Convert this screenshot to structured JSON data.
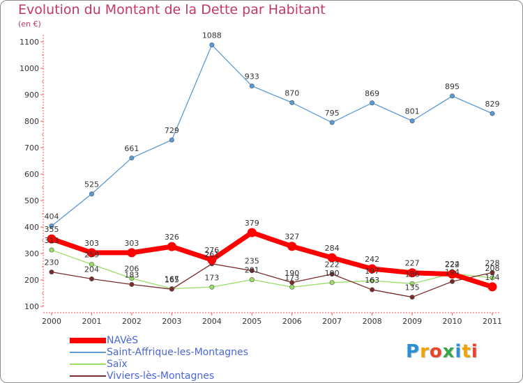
{
  "header": {
    "title": "Evolution du Montant de la Dette par Habitant",
    "subtitle": "(en €)"
  },
  "logo": {
    "text": "Proxiti",
    "colors": [
      "#2a8fd6",
      "#f2a400",
      "#e8442a",
      "#3aa64a",
      "#2a8fd6",
      "#f2a400",
      "#e8442a"
    ]
  },
  "chart_data": {
    "type": "line",
    "x": [
      "2000",
      "2001",
      "2002",
      "2003",
      "2004",
      "2005",
      "2006",
      "2007",
      "2008",
      "2009",
      "2010",
      "2011"
    ],
    "yticks": [
      "100",
      "200",
      "300",
      "400",
      "500",
      "600",
      "700",
      "800",
      "900",
      "1000",
      "1100"
    ],
    "ylim": [
      100,
      1100
    ],
    "grid": false,
    "legend_position": "bottom-left",
    "series": [
      {
        "name": "NAVèS",
        "color": "#ff0000",
        "values": [
          355,
          303,
          303,
          326,
          276,
          379,
          327,
          284,
          242,
          227,
          222,
          174
        ],
        "labels": [
          "355",
          "303",
          "303",
          "326",
          "276",
          "379",
          "327",
          "284",
          "242",
          "227",
          "222",
          "174"
        ]
      },
      {
        "name": "Saint-Affrique-les-Montagnes",
        "color": "#5a9bd5",
        "values": [
          404,
          525,
          661,
          729,
          1088,
          933,
          870,
          795,
          869,
          801,
          895,
          829
        ],
        "labels": [
          "404",
          "525",
          "661",
          "729",
          "1088",
          "933",
          "870",
          "795",
          "869",
          "801",
          "895",
          "829"
        ]
      },
      {
        "name": "Saïx",
        "color": "#99dd66",
        "values": [
          313,
          259,
          206,
          167,
          173,
          201,
          173,
          190,
          197,
          186,
          224,
          208
        ],
        "labels": [
          "313",
          "259",
          "206",
          "167",
          "173",
          "201",
          "173",
          "190",
          "197",
          "186",
          "224",
          "208"
        ]
      },
      {
        "name": "Viviers-lès-Montagnes",
        "color": "#7a2a2a",
        "values": [
          230,
          204,
          183,
          165,
          261,
          235,
          190,
          222,
          163,
          135,
          194,
          228
        ],
        "labels": [
          "230",
          "204",
          "183",
          "165",
          "261",
          "235",
          "190",
          "222",
          "163",
          "135",
          "194",
          "228"
        ]
      }
    ]
  }
}
